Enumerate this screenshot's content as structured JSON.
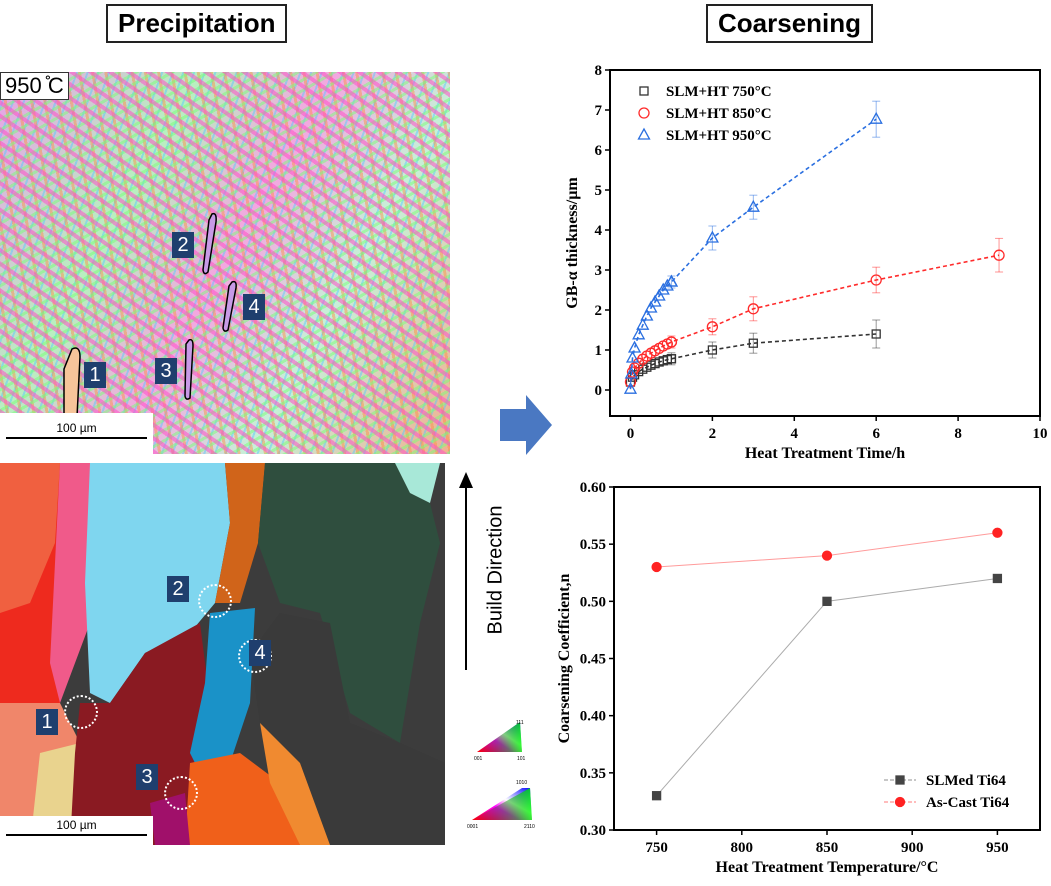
{
  "titles": {
    "left": "Precipitation",
    "right": "Coarsening"
  },
  "top_map": {
    "temperature_label": "950 ̊C",
    "scale_label": "100 µm",
    "markers": [
      "1",
      "2",
      "3",
      "4"
    ]
  },
  "bottom_map": {
    "scale_label": "100 µm",
    "markers": [
      "1",
      "2",
      "3",
      "4"
    ],
    "build_direction": "Build Direction",
    "ipf_labels": [
      "001",
      "101",
      "111",
      "0001",
      "2110",
      "1010"
    ]
  },
  "colors": {
    "s750": "#333333",
    "s850": "#ff2b2b",
    "s950": "#2a6fe0",
    "slm": "#444444",
    "cast": "#ff2222"
  },
  "chart_data": [
    {
      "type": "line",
      "title": "",
      "xlabel": "Heat Treatment Time/h",
      "ylabel": "GB-α thickness/µm",
      "xlim": [
        -0.5,
        10
      ],
      "ylim": [
        -0.65,
        8
      ],
      "xticks": [
        0,
        2,
        4,
        6,
        8,
        10
      ],
      "yticks": [
        0,
        1,
        2,
        3,
        4,
        5,
        6,
        7,
        8
      ],
      "legend_position": "top-left",
      "series": [
        {
          "name": "SLM+HT 750°C",
          "marker": "square",
          "color": "#333333",
          "dense_x": [
            0,
            0.05,
            0.1,
            0.2,
            0.3,
            0.4,
            0.5,
            0.6,
            0.7,
            0.8,
            0.9,
            1
          ],
          "dense_y": [
            0.2,
            0.32,
            0.38,
            0.46,
            0.52,
            0.57,
            0.62,
            0.66,
            0.7,
            0.73,
            0.76,
            0.78
          ],
          "x": [
            1,
            2,
            3,
            6
          ],
          "y": [
            0.78,
            1.0,
            1.17,
            1.4
          ],
          "err": [
            0.15,
            0.2,
            0.25,
            0.35
          ]
        },
        {
          "name": "SLM+HT 850°C",
          "marker": "circle",
          "color": "#ff2b2b",
          "dense_x": [
            0,
            0.05,
            0.1,
            0.2,
            0.3,
            0.4,
            0.5,
            0.6,
            0.7,
            0.8,
            0.9,
            1
          ],
          "dense_y": [
            0.2,
            0.45,
            0.55,
            0.67,
            0.77,
            0.85,
            0.92,
            0.98,
            1.04,
            1.1,
            1.15,
            1.2
          ],
          "x": [
            1,
            2,
            3,
            6,
            9
          ],
          "y": [
            1.2,
            1.58,
            2.03,
            2.75,
            3.37
          ],
          "err": [
            0.15,
            0.2,
            0.3,
            0.32,
            0.42
          ]
        },
        {
          "name": "SLM+HT 950°C",
          "marker": "triangle",
          "color": "#2a6fe0",
          "dense_x": [
            0,
            0.02,
            0.05,
            0.1,
            0.2,
            0.3,
            0.4,
            0.5,
            0.6,
            0.7,
            0.8,
            0.9,
            1
          ],
          "dense_y": [
            0.02,
            0.4,
            0.8,
            1.05,
            1.38,
            1.62,
            1.85,
            2.05,
            2.2,
            2.35,
            2.5,
            2.6,
            2.7
          ],
          "x": [
            1,
            2,
            3,
            6
          ],
          "y": [
            2.7,
            3.8,
            4.57,
            6.77
          ],
          "err": [
            0.15,
            0.3,
            0.3,
            0.45
          ]
        }
      ]
    },
    {
      "type": "line",
      "title": "",
      "xlabel": "Heat Treatment Temperature/°C",
      "ylabel": "Coarsening Coefficient,n",
      "xlim": [
        725,
        975
      ],
      "ylim": [
        0.3,
        0.6
      ],
      "xticks": [
        750,
        800,
        850,
        900,
        950
      ],
      "yticks": [
        "0.30",
        "0.35",
        "0.40",
        "0.45",
        "0.50",
        "0.55",
        "0.60"
      ],
      "legend_position": "bottom-right",
      "series": [
        {
          "name": "SLMed Ti64",
          "marker": "square",
          "color": "#444444",
          "x": [
            750,
            850,
            950
          ],
          "y": [
            0.33,
            0.5,
            0.52
          ]
        },
        {
          "name": "As-Cast Ti64",
          "marker": "circle",
          "color": "#ff2222",
          "x": [
            750,
            850,
            950
          ],
          "y": [
            0.53,
            0.54,
            0.56
          ]
        }
      ]
    }
  ]
}
